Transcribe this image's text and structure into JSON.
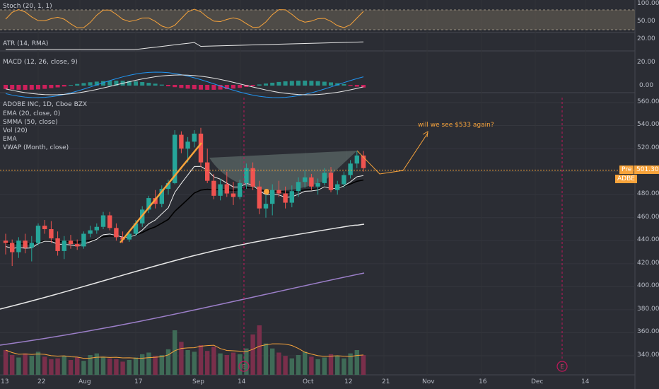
{
  "panes": {
    "stoch": {
      "label": "Stoch (20, 1, 1)",
      "ticks": [
        "100.00",
        "50.00"
      ]
    },
    "atr": {
      "label": "ATR (14, RMA)",
      "ticks": [
        "20.00"
      ]
    },
    "macd": {
      "label": "MACD (12, 26, close, 9)",
      "ticks": [
        "20.00",
        "0.00"
      ]
    },
    "main": {
      "legend": [
        "ADOBE INC, 1D, Cboe BZX",
        "EMA (20, close, 0)",
        "SMMA (50, close)",
        "Vol (20)",
        "EMA",
        "VWAP (Month, close)"
      ],
      "ticks": [
        "560.00",
        "540.00",
        "520.00",
        "500.00",
        "480.00",
        "460.00",
        "440.00",
        "420.00",
        "400.00",
        "380.00",
        "360.00",
        "340.00"
      ]
    }
  },
  "price_tag": {
    "pre_label": "Pre",
    "value": "501.30",
    "symbol": "ADBE"
  },
  "annotation": "will we see $533 again?",
  "earnings_marker": "E",
  "x_labels": [
    "13",
    "22",
    "Aug",
    "17",
    "Sep",
    "14",
    "Oct",
    "12",
    "21",
    "Nov",
    "16",
    "Dec",
    "14"
  ],
  "colors": {
    "up": "#26a69a",
    "down": "#ef5350",
    "ema": "#000000",
    "smma": "#e8e8e8",
    "vwap": "#9c7fc9",
    "vol_ema": "#f7a33b",
    "accent": "#f7a33b"
  },
  "chart_data": [
    {
      "type": "candlestick",
      "title": "ADOBE INC, 1D, Cboe BZX",
      "ylim": [
        330,
        565
      ],
      "candles": [
        {
          "o": 440,
          "h": 446,
          "l": 428,
          "c": 438
        },
        {
          "o": 438,
          "h": 441,
          "l": 418,
          "c": 430
        },
        {
          "o": 430,
          "h": 443,
          "l": 425,
          "c": 440
        },
        {
          "o": 440,
          "h": 446,
          "l": 429,
          "c": 434
        },
        {
          "o": 434,
          "h": 444,
          "l": 422,
          "c": 438
        },
        {
          "o": 438,
          "h": 455,
          "l": 436,
          "c": 453
        },
        {
          "o": 453,
          "h": 458,
          "l": 446,
          "c": 450
        },
        {
          "o": 450,
          "h": 457,
          "l": 438,
          "c": 442
        },
        {
          "o": 442,
          "h": 448,
          "l": 427,
          "c": 431
        },
        {
          "o": 431,
          "h": 444,
          "l": 424,
          "c": 440
        },
        {
          "o": 440,
          "h": 445,
          "l": 433,
          "c": 437
        },
        {
          "o": 437,
          "h": 441,
          "l": 432,
          "c": 435
        },
        {
          "o": 435,
          "h": 448,
          "l": 433,
          "c": 446
        },
        {
          "o": 446,
          "h": 453,
          "l": 443,
          "c": 449
        },
        {
          "o": 449,
          "h": 455,
          "l": 446,
          "c": 452
        },
        {
          "o": 452,
          "h": 465,
          "l": 450,
          "c": 462
        },
        {
          "o": 462,
          "h": 465,
          "l": 449,
          "c": 451
        },
        {
          "o": 451,
          "h": 455,
          "l": 440,
          "c": 443
        },
        {
          "o": 443,
          "h": 448,
          "l": 438,
          "c": 441
        },
        {
          "o": 441,
          "h": 448,
          "l": 439,
          "c": 446
        },
        {
          "o": 446,
          "h": 458,
          "l": 444,
          "c": 455
        },
        {
          "o": 455,
          "h": 470,
          "l": 452,
          "c": 467
        },
        {
          "o": 467,
          "h": 479,
          "l": 464,
          "c": 477
        },
        {
          "o": 477,
          "h": 484,
          "l": 468,
          "c": 472
        },
        {
          "o": 472,
          "h": 488,
          "l": 469,
          "c": 485
        },
        {
          "o": 485,
          "h": 493,
          "l": 480,
          "c": 490
        },
        {
          "o": 490,
          "h": 536,
          "l": 489,
          "c": 532
        },
        {
          "o": 532,
          "h": 535,
          "l": 516,
          "c": 520
        },
        {
          "o": 520,
          "h": 530,
          "l": 508,
          "c": 526
        },
        {
          "o": 526,
          "h": 536,
          "l": 521,
          "c": 533
        },
        {
          "o": 533,
          "h": 538,
          "l": 504,
          "c": 508
        },
        {
          "o": 508,
          "h": 520,
          "l": 490,
          "c": 492
        },
        {
          "o": 492,
          "h": 498,
          "l": 476,
          "c": 479
        },
        {
          "o": 479,
          "h": 494,
          "l": 475,
          "c": 489
        },
        {
          "o": 489,
          "h": 500,
          "l": 478,
          "c": 481
        },
        {
          "o": 481,
          "h": 491,
          "l": 471,
          "c": 478
        },
        {
          "o": 478,
          "h": 493,
          "l": 476,
          "c": 490
        },
        {
          "o": 490,
          "h": 507,
          "l": 485,
          "c": 503
        },
        {
          "o": 503,
          "h": 508,
          "l": 484,
          "c": 487
        },
        {
          "o": 487,
          "h": 492,
          "l": 463,
          "c": 468
        },
        {
          "o": 468,
          "h": 483,
          "l": 460,
          "c": 472
        },
        {
          "o": 472,
          "h": 489,
          "l": 462,
          "c": 484
        },
        {
          "o": 484,
          "h": 492,
          "l": 478,
          "c": 481
        },
        {
          "o": 481,
          "h": 487,
          "l": 468,
          "c": 473
        },
        {
          "o": 473,
          "h": 488,
          "l": 469,
          "c": 483
        },
        {
          "o": 483,
          "h": 495,
          "l": 478,
          "c": 491
        },
        {
          "o": 491,
          "h": 501,
          "l": 486,
          "c": 495
        },
        {
          "o": 495,
          "h": 498,
          "l": 484,
          "c": 487
        },
        {
          "o": 487,
          "h": 494,
          "l": 480,
          "c": 490
        },
        {
          "o": 490,
          "h": 503,
          "l": 488,
          "c": 499
        },
        {
          "o": 499,
          "h": 504,
          "l": 482,
          "c": 484
        },
        {
          "o": 484,
          "h": 492,
          "l": 480,
          "c": 489
        },
        {
          "o": 489,
          "h": 500,
          "l": 486,
          "c": 497
        },
        {
          "o": 497,
          "h": 510,
          "l": 494,
          "c": 507
        },
        {
          "o": 507,
          "h": 518,
          "l": 503,
          "c": 514
        },
        {
          "o": 514,
          "h": 518,
          "l": 500,
          "c": 503
        }
      ]
    },
    {
      "type": "bar",
      "name": "Vol (20)",
      "values": [
        3.0,
        2.4,
        2.1,
        2.6,
        2.3,
        2.8,
        2.2,
        1.9,
        2.0,
        2.3,
        1.8,
        2.1,
        1.7,
        2.4,
        2.6,
        2.2,
        2.0,
        1.9,
        1.6,
        1.8,
        2.1,
        2.5,
        2.7,
        2.3,
        2.4,
        3.1,
        5.4,
        4.0,
        3.0,
        2.8,
        3.6,
        2.9,
        3.4,
        2.6,
        2.4,
        2.7,
        2.5,
        3.2,
        4.9,
        6.0,
        3.8,
        3.2,
        2.7,
        2.3,
        2.0,
        2.4,
        2.8,
        2.2,
        1.9,
        2.1,
        2.5,
        2.3,
        2.0,
        2.6,
        3.0,
        2.4
      ]
    }
  ]
}
